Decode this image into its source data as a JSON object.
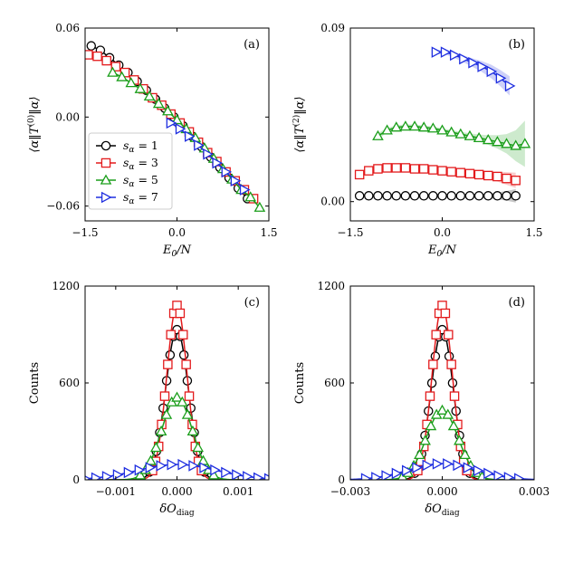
{
  "colors": {
    "s1": "#000000",
    "s3": "#e31a1c",
    "s5": "#1a9e1a",
    "s7": "#1f2fe0"
  },
  "chart_data": [
    {
      "type": "line",
      "panel": "(a)",
      "xlabel": "E_0/N",
      "ylabel": "⟨α‖T^(0)‖α⟩",
      "xlim": [
        -1.5,
        1.5
      ],
      "ylim": [
        -0.07,
        0.06
      ],
      "xticks": [
        -1.5,
        0.0,
        1.5
      ],
      "xtick_labels": [
        "−1.5",
        "0.0",
        "1.5"
      ],
      "yticks": [
        -0.06,
        0.0,
        0.06
      ],
      "ytick_labels": [
        "−0.06",
        "0.00",
        "0.06"
      ],
      "legend": {
        "position": "center-left",
        "entries": [
          "s_α = 1",
          "s_α = 3",
          "s_α = 5",
          "s_α = 7"
        ]
      },
      "series": [
        {
          "name": "s_α = 1",
          "marker": "circle",
          "x": [
            -1.4,
            -1.25,
            -1.1,
            -0.95,
            -0.8,
            -0.65,
            -0.5,
            -0.35,
            -0.2,
            -0.05,
            0.1,
            0.25,
            0.4,
            0.55,
            0.7,
            0.85,
            1.0,
            1.15
          ],
          "y": [
            0.048,
            0.045,
            0.04,
            0.035,
            0.03,
            0.024,
            0.018,
            0.012,
            0.006,
            0.0,
            -0.006,
            -0.013,
            -0.02,
            -0.027,
            -0.034,
            -0.041,
            -0.048,
            -0.055
          ]
        },
        {
          "name": "s_α = 3",
          "marker": "square",
          "x": [
            -1.45,
            -1.3,
            -1.15,
            -1.0,
            -0.85,
            -0.7,
            -0.55,
            -0.4,
            -0.25,
            -0.1,
            0.05,
            0.2,
            0.35,
            0.5,
            0.65,
            0.8,
            0.95,
            1.1,
            1.25
          ],
          "y": [
            0.042,
            0.041,
            0.038,
            0.034,
            0.03,
            0.025,
            0.019,
            0.013,
            0.008,
            0.002,
            -0.004,
            -0.01,
            -0.017,
            -0.024,
            -0.03,
            -0.037,
            -0.043,
            -0.049,
            -0.055
          ]
        },
        {
          "name": "s_α = 5",
          "marker": "triangle-up",
          "x": [
            -1.05,
            -0.9,
            -0.75,
            -0.6,
            -0.45,
            -0.3,
            -0.15,
            0.0,
            0.15,
            0.3,
            0.45,
            0.6,
            0.75,
            0.9,
            1.05,
            1.2,
            1.35
          ],
          "y": [
            0.03,
            0.027,
            0.023,
            0.019,
            0.014,
            0.009,
            0.004,
            -0.002,
            -0.008,
            -0.014,
            -0.021,
            -0.028,
            -0.035,
            -0.042,
            -0.049,
            -0.054,
            -0.061
          ]
        },
        {
          "name": "s_α = 7",
          "marker": "triangle-right",
          "x": [
            -0.1,
            0.05,
            0.2,
            0.35,
            0.5,
            0.65,
            0.8,
            0.95,
            1.1
          ],
          "y": [
            -0.004,
            -0.008,
            -0.013,
            -0.019,
            -0.025,
            -0.031,
            -0.037,
            -0.043,
            -0.049
          ]
        }
      ]
    },
    {
      "type": "line",
      "panel": "(b)",
      "xlabel": "E_0/N",
      "ylabel": "⟨α‖T^(2)‖α⟩",
      "xlim": [
        -1.5,
        1.5
      ],
      "ylim": [
        -0.01,
        0.09
      ],
      "xticks": [
        -1.5,
        0.0,
        1.5
      ],
      "xtick_labels": [
        "−1.5",
        "0.0",
        "1.5"
      ],
      "yticks": [
        0.0,
        0.09
      ],
      "ytick_labels": [
        "0.00",
        "0.09"
      ],
      "series": [
        {
          "name": "s_α = 1",
          "marker": "circle",
          "x": [
            -1.35,
            -1.2,
            -1.05,
            -0.9,
            -0.75,
            -0.6,
            -0.45,
            -0.3,
            -0.15,
            0.0,
            0.15,
            0.3,
            0.45,
            0.6,
            0.75,
            0.9,
            1.05,
            1.2
          ],
          "y": [
            0.003,
            0.003,
            0.003,
            0.003,
            0.003,
            0.003,
            0.003,
            0.003,
            0.003,
            0.003,
            0.003,
            0.003,
            0.003,
            0.003,
            0.003,
            0.003,
            0.003,
            0.003
          ],
          "band": [
            0.0005,
            0.0005,
            0.0005,
            0.0005,
            0.0005,
            0.0005,
            0.0005,
            0.0005,
            0.0005,
            0.0005,
            0.0005,
            0.0005,
            0.0006,
            0.0008,
            0.0012,
            0.0018,
            0.0025,
            0.0035
          ]
        },
        {
          "name": "s_α = 3",
          "marker": "square",
          "x": [
            -1.35,
            -1.2,
            -1.05,
            -0.9,
            -0.75,
            -0.6,
            -0.45,
            -0.3,
            -0.15,
            0.0,
            0.15,
            0.3,
            0.45,
            0.6,
            0.75,
            0.9,
            1.05,
            1.2
          ],
          "y": [
            0.014,
            0.016,
            0.017,
            0.0175,
            0.0175,
            0.0175,
            0.017,
            0.017,
            0.0165,
            0.016,
            0.0155,
            0.015,
            0.0145,
            0.014,
            0.0135,
            0.013,
            0.012,
            0.011
          ],
          "band": [
            0.0008,
            0.0008,
            0.0008,
            0.0008,
            0.0008,
            0.0008,
            0.0008,
            0.0008,
            0.0008,
            0.0009,
            0.001,
            0.0011,
            0.0013,
            0.0016,
            0.002,
            0.0026,
            0.0033,
            0.004
          ]
        },
        {
          "name": "s_α = 5",
          "marker": "triangle-up",
          "x": [
            -1.05,
            -0.9,
            -0.75,
            -0.6,
            -0.45,
            -0.3,
            -0.15,
            0.0,
            0.15,
            0.3,
            0.45,
            0.6,
            0.75,
            0.9,
            1.05,
            1.2,
            1.35
          ],
          "y": [
            0.034,
            0.037,
            0.0385,
            0.039,
            0.039,
            0.0385,
            0.038,
            0.037,
            0.036,
            0.035,
            0.034,
            0.033,
            0.032,
            0.031,
            0.03,
            0.029,
            0.03
          ],
          "band": [
            0.0015,
            0.0012,
            0.0011,
            0.001,
            0.001,
            0.001,
            0.001,
            0.001,
            0.0011,
            0.0012,
            0.0014,
            0.0018,
            0.0025,
            0.0035,
            0.005,
            0.008,
            0.012
          ]
        },
        {
          "name": "s_α = 7",
          "marker": "triangle-right",
          "x": [
            -0.1,
            0.05,
            0.2,
            0.35,
            0.5,
            0.65,
            0.8,
            0.95,
            1.1
          ],
          "y": [
            0.0775,
            0.0775,
            0.076,
            0.074,
            0.072,
            0.07,
            0.0675,
            0.064,
            0.06
          ],
          "band": [
            0.001,
            0.0012,
            0.0015,
            0.0018,
            0.0022,
            0.0028,
            0.0035,
            0.0042,
            0.005
          ]
        }
      ]
    },
    {
      "type": "line",
      "panel": "(c)",
      "xlabel": "δO_diag",
      "ylabel": "Counts",
      "xlim": [
        -0.0015,
        0.0015
      ],
      "ylim": [
        0,
        1200
      ],
      "xticks": [
        -0.001,
        0.0,
        0.001
      ],
      "xtick_labels": [
        "−0.001",
        "0.000",
        "0.001"
      ],
      "yticks": [
        0,
        600,
        1200
      ],
      "ytick_labels": [
        "0",
        "600",
        "1200"
      ],
      "series": [
        {
          "name": "s_α = 1",
          "marker": "circle",
          "sigma": 0.000185,
          "amp": 930,
          "x_range": [
            -0.00045,
            0.00045
          ],
          "n": 17
        },
        {
          "name": "s_α = 3",
          "marker": "square",
          "sigma": 0.000165,
          "amp": 1080,
          "x_range": [
            -0.0004,
            0.0004
          ],
          "n": 17
        },
        {
          "name": "s_α = 5",
          "marker": "triangle-up",
          "sigma": 0.00025,
          "amp": 510,
          "x_range": [
            -0.0006,
            0.0006
          ],
          "n": 15
        },
        {
          "name": "s_α = 7",
          "marker": "triangle-right",
          "sigma": 0.00065,
          "amp": 95,
          "x_range": [
            -0.0015,
            0.0015
          ],
          "n": 18
        }
      ]
    },
    {
      "type": "line",
      "panel": "(d)",
      "xlabel": "δO_diag",
      "ylabel": "Counts",
      "xlim": [
        -0.003,
        0.003
      ],
      "ylim": [
        0,
        1200
      ],
      "xticks": [
        -0.003,
        0.0,
        0.003
      ],
      "xtick_labels": [
        "−0.003",
        "0.000",
        "0.003"
      ],
      "yticks": [
        0,
        600,
        1200
      ],
      "ytick_labels": [
        "0",
        "600",
        "1200"
      ],
      "series": [
        {
          "name": "s_α = 1",
          "marker": "circle",
          "sigma": 0.00036,
          "amp": 930,
          "x_range": [
            -0.0009,
            0.0009
          ],
          "n": 17
        },
        {
          "name": "s_α = 3",
          "marker": "square",
          "sigma": 0.00033,
          "amp": 1080,
          "x_range": [
            -0.0008,
            0.0008
          ],
          "n": 17
        },
        {
          "name": "s_α = 5",
          "marker": "triangle-up",
          "sigma": 0.00052,
          "amp": 430,
          "x_range": [
            -0.0013,
            0.0013
          ],
          "n": 15
        },
        {
          "name": "s_α = 7",
          "marker": "triangle-right",
          "sigma": 0.0011,
          "amp": 100,
          "x_range": [
            -0.0025,
            0.0025
          ],
          "n": 16
        }
      ]
    }
  ],
  "labels": {
    "panel_a": "(a)",
    "panel_b": "(b)",
    "panel_c": "(c)",
    "panel_d": "(d)",
    "legend_1": "s",
    "legend_1_sub": "α",
    "legend_1_val": " = 1",
    "legend_3": "s",
    "legend_3_sub": "α",
    "legend_3_val": " = 3",
    "legend_5": "s",
    "legend_5_sub": "α",
    "legend_5_val": " = 5",
    "legend_7": "s",
    "legend_7_sub": "α",
    "legend_7_val": " = 7"
  }
}
